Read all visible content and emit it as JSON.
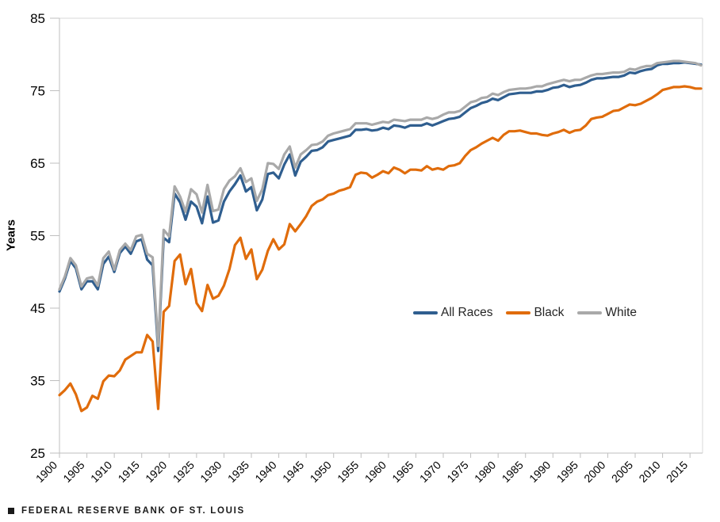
{
  "footer": {
    "text": "FEDERAL RESERVE BANK OF ST. LOUIS"
  },
  "chart_data": {
    "type": "line",
    "title": "",
    "xlabel": "",
    "ylabel": "Years",
    "ylim": [
      25,
      85
    ],
    "yticks": [
      25,
      35,
      45,
      55,
      65,
      75,
      85
    ],
    "x_range": [
      1900,
      2017
    ],
    "xticks": [
      1900,
      1905,
      1910,
      1915,
      1920,
      1925,
      1930,
      1935,
      1940,
      1945,
      1950,
      1955,
      1960,
      1965,
      1970,
      1975,
      1980,
      1985,
      1990,
      1995,
      2000,
      2005,
      2010,
      2015
    ],
    "grid": "off",
    "plot_border": "top-right-light-gray",
    "legend_position": "inside-right-middle",
    "colors": {
      "axis": "#BFBFBF",
      "border": "#D9D9D9",
      "tick_text": "#000000"
    },
    "years": [
      1900,
      1901,
      1902,
      1903,
      1904,
      1905,
      1906,
      1907,
      1908,
      1909,
      1910,
      1911,
      1912,
      1913,
      1914,
      1915,
      1916,
      1917,
      1918,
      1919,
      1920,
      1921,
      1922,
      1923,
      1924,
      1925,
      1926,
      1927,
      1928,
      1929,
      1930,
      1931,
      1932,
      1933,
      1934,
      1935,
      1936,
      1937,
      1938,
      1939,
      1940,
      1941,
      1942,
      1943,
      1944,
      1945,
      1946,
      1947,
      1948,
      1949,
      1950,
      1951,
      1952,
      1953,
      1954,
      1955,
      1956,
      1957,
      1958,
      1959,
      1960,
      1961,
      1962,
      1963,
      1964,
      1965,
      1966,
      1967,
      1968,
      1969,
      1970,
      1971,
      1972,
      1973,
      1974,
      1975,
      1976,
      1977,
      1978,
      1979,
      1980,
      1981,
      1982,
      1983,
      1984,
      1985,
      1986,
      1987,
      1988,
      1989,
      1990,
      1991,
      1992,
      1993,
      1994,
      1995,
      1996,
      1997,
      1998,
      1999,
      2000,
      2001,
      2002,
      2003,
      2004,
      2005,
      2006,
      2007,
      2008,
      2009,
      2010,
      2011,
      2012,
      2013,
      2014,
      2015,
      2016,
      2017
    ],
    "series": [
      {
        "name": "All Races",
        "color": "#2F5E8F",
        "values": [
          47.3,
          49.1,
          51.5,
          50.5,
          47.6,
          48.7,
          48.7,
          47.6,
          51.1,
          52.1,
          50.0,
          52.6,
          53.5,
          52.5,
          54.2,
          54.5,
          51.7,
          50.9,
          39.1,
          54.7,
          54.1,
          60.8,
          59.6,
          57.2,
          59.7,
          59.0,
          56.7,
          60.4,
          56.8,
          57.1,
          59.7,
          61.1,
          62.1,
          63.3,
          61.1,
          61.7,
          58.5,
          60.0,
          63.5,
          63.7,
          62.9,
          64.8,
          66.2,
          63.3,
          65.2,
          65.9,
          66.7,
          66.8,
          67.2,
          68.0,
          68.2,
          68.4,
          68.6,
          68.8,
          69.6,
          69.6,
          69.7,
          69.5,
          69.6,
          69.9,
          69.7,
          70.2,
          70.1,
          69.9,
          70.2,
          70.2,
          70.2,
          70.5,
          70.2,
          70.5,
          70.8,
          71.1,
          71.2,
          71.4,
          72.0,
          72.6,
          72.9,
          73.3,
          73.5,
          73.9,
          73.7,
          74.1,
          74.5,
          74.6,
          74.7,
          74.7,
          74.7,
          74.9,
          74.9,
          75.1,
          75.4,
          75.5,
          75.8,
          75.5,
          75.7,
          75.8,
          76.1,
          76.5,
          76.7,
          76.7,
          76.8,
          76.9,
          76.9,
          77.1,
          77.5,
          77.4,
          77.7,
          77.9,
          78.0,
          78.5,
          78.7,
          78.7,
          78.8,
          78.8,
          78.9,
          78.8,
          78.7,
          78.6
        ]
      },
      {
        "name": "Black",
        "color": "#E06C0B",
        "values": [
          33.0,
          33.7,
          34.6,
          33.1,
          30.8,
          31.3,
          32.9,
          32.5,
          34.9,
          35.7,
          35.6,
          36.4,
          37.9,
          38.4,
          38.9,
          38.9,
          41.3,
          40.4,
          31.1,
          44.5,
          45.3,
          51.5,
          52.4,
          48.3,
          50.4,
          45.7,
          44.6,
          48.2,
          46.3,
          46.7,
          48.1,
          50.4,
          53.7,
          54.7,
          51.8,
          53.1,
          49.0,
          50.3,
          52.9,
          54.5,
          53.1,
          53.8,
          56.6,
          55.6,
          56.6,
          57.7,
          59.1,
          59.7,
          60.0,
          60.6,
          60.8,
          61.2,
          61.4,
          61.7,
          63.4,
          63.7,
          63.6,
          63.0,
          63.4,
          63.9,
          63.6,
          64.4,
          64.1,
          63.6,
          64.1,
          64.1,
          64.0,
          64.6,
          64.1,
          64.3,
          64.1,
          64.6,
          64.7,
          65.0,
          66.0,
          66.8,
          67.2,
          67.7,
          68.1,
          68.5,
          68.1,
          68.9,
          69.4,
          69.4,
          69.5,
          69.3,
          69.1,
          69.1,
          68.9,
          68.8,
          69.1,
          69.3,
          69.6,
          69.2,
          69.5,
          69.6,
          70.2,
          71.1,
          71.3,
          71.4,
          71.8,
          72.2,
          72.3,
          72.7,
          73.1,
          73.0,
          73.2,
          73.6,
          74.0,
          74.5,
          75.1,
          75.3,
          75.5,
          75.5,
          75.6,
          75.5,
          75.3,
          75.3
        ]
      },
      {
        "name": "White",
        "color": "#A9A9A9",
        "values": [
          47.6,
          49.4,
          51.9,
          50.9,
          48.0,
          49.1,
          49.3,
          48.1,
          51.9,
          52.8,
          50.3,
          53.0,
          53.9,
          53.0,
          54.9,
          55.1,
          52.5,
          52.0,
          39.8,
          55.8,
          54.9,
          61.8,
          60.4,
          58.3,
          61.4,
          60.7,
          58.2,
          62.0,
          58.4,
          58.6,
          61.4,
          62.6,
          63.2,
          64.3,
          62.4,
          62.9,
          59.8,
          61.4,
          65.0,
          64.9,
          64.2,
          66.2,
          67.3,
          64.4,
          66.2,
          66.8,
          67.5,
          67.6,
          68.0,
          68.8,
          69.1,
          69.3,
          69.5,
          69.7,
          70.5,
          70.5,
          70.5,
          70.3,
          70.5,
          70.7,
          70.6,
          71.0,
          70.9,
          70.8,
          71.0,
          71.0,
          71.0,
          71.3,
          71.1,
          71.3,
          71.7,
          72.0,
          72.0,
          72.2,
          72.8,
          73.4,
          73.6,
          74.0,
          74.1,
          74.6,
          74.4,
          74.8,
          75.1,
          75.2,
          75.3,
          75.3,
          75.4,
          75.6,
          75.6,
          75.9,
          76.1,
          76.3,
          76.5,
          76.3,
          76.5,
          76.5,
          76.8,
          77.1,
          77.3,
          77.3,
          77.4,
          77.5,
          77.5,
          77.6,
          78.0,
          77.9,
          78.2,
          78.4,
          78.4,
          78.8,
          78.9,
          79.0,
          79.1,
          79.1,
          79.0,
          78.9,
          78.8,
          78.5
        ]
      }
    ]
  }
}
